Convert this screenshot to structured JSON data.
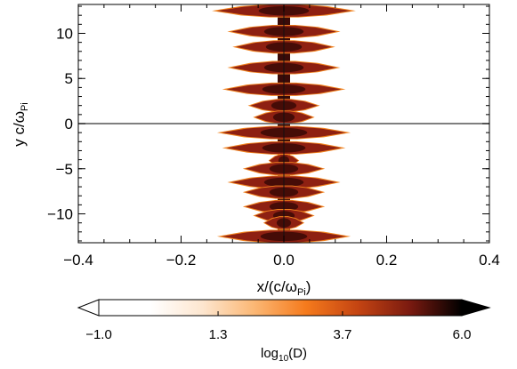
{
  "chart_data": {
    "type": "heatmap",
    "xlabel": {
      "base": "x/(c/ω",
      "sub": "Pi",
      "tail": ")"
    },
    "ylabel": {
      "base": "y c/ω",
      "sub": "Pi"
    },
    "xlim": [
      -0.4,
      0.4
    ],
    "ylim": [
      -13.2,
      13.2
    ],
    "x_ticks": [
      -0.4,
      -0.2,
      0.0,
      0.2,
      0.4
    ],
    "x_tick_labels": [
      "−0.4",
      "−0.2",
      "0.0",
      "0.2",
      "0.4"
    ],
    "y_ticks": [
      -10,
      -5,
      0,
      5,
      10
    ],
    "y_tick_labels": [
      "−10",
      "−5",
      "0",
      "5",
      "10"
    ],
    "reference_lines": {
      "horizontal_y": 0,
      "vertical_x": 0
    },
    "lobes": [
      {
        "y": 12.5,
        "half_width": 0.14
      },
      {
        "y": 10.2,
        "half_width": 0.11
      },
      {
        "y": 8.5,
        "half_width": 0.1
      },
      {
        "y": 6.2,
        "half_width": 0.11
      },
      {
        "y": 3.8,
        "half_width": 0.12
      },
      {
        "y": 2.0,
        "half_width": 0.07
      },
      {
        "y": 0.7,
        "half_width": 0.06
      },
      {
        "y": -1.0,
        "half_width": 0.13
      },
      {
        "y": -2.7,
        "half_width": 0.12
      },
      {
        "y": -4.1,
        "half_width": 0.03
      },
      {
        "y": -5.0,
        "half_width": 0.08
      },
      {
        "y": -6.5,
        "half_width": 0.11
      },
      {
        "y": -7.6,
        "half_width": 0.08
      },
      {
        "y": -9.2,
        "half_width": 0.08
      },
      {
        "y": -10.2,
        "half_width": 0.06
      },
      {
        "y": -11.0,
        "half_width": 0.04
      },
      {
        "y": -12.5,
        "half_width": 0.13
      }
    ],
    "colorbar": {
      "label": {
        "base": "log",
        "sub": "10",
        "tail": "(D)"
      },
      "range": [
        -1.0,
        6.0
      ],
      "ticks": [
        -1.0,
        1.3,
        3.7,
        6.0
      ],
      "tick_labels": [
        "−1.0",
        "1.3",
        "3.7",
        "6.0"
      ],
      "extend": "both",
      "colormap_stops": [
        "#ffffff",
        "#ffffff",
        "#fde6cf",
        "#fbb774",
        "#f57a1c",
        "#c44412",
        "#7a1a10",
        "#000000"
      ]
    }
  }
}
